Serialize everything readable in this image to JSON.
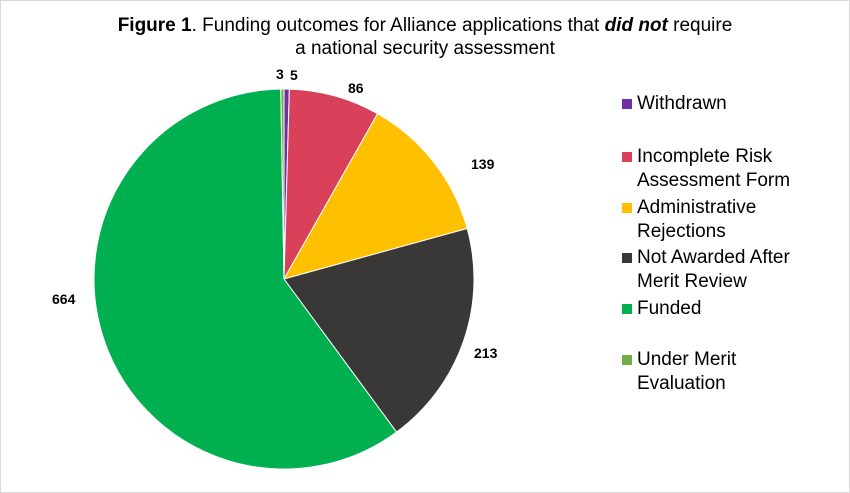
{
  "title": {
    "prefix": "Figure 1",
    "part1": ". Funding outcomes for Alliance applications that ",
    "emph": "did not",
    "part2": " require",
    "line2": "a national security assessment"
  },
  "chart_data": {
    "type": "pie",
    "title": "Figure 1. Funding outcomes for Alliance applications that did not require a national security assessment",
    "categories": [
      "Withdrawn",
      "Incomplete Risk Assessment Form",
      "Administrative Rejections",
      "Not Awarded After Merit Review",
      "Funded",
      "Under Merit Evaluation"
    ],
    "values": [
      5,
      86,
      139,
      213,
      664,
      3
    ],
    "colors": [
      "#7030a0",
      "#d9415a",
      "#ffc000",
      "#3a3737",
      "#00b050",
      "#70ad47"
    ],
    "data_labels": [
      "5",
      "86",
      "139",
      "213",
      "664",
      "3"
    ],
    "legend_position": "right",
    "start_angle": "12 o'clock, clockwise"
  },
  "legend": [
    {
      "line1": "Withdrawn",
      "line2": ""
    },
    {
      "line1": "Incomplete Risk",
      "line2": "Assessment Form"
    },
    {
      "line1": "Administrative",
      "line2": "Rejections"
    },
    {
      "line1": "Not Awarded After",
      "line2": "Merit Review"
    },
    {
      "line1": "Funded",
      "line2": ""
    },
    {
      "line1": "Under Merit",
      "line2": "Evaluation"
    }
  ]
}
